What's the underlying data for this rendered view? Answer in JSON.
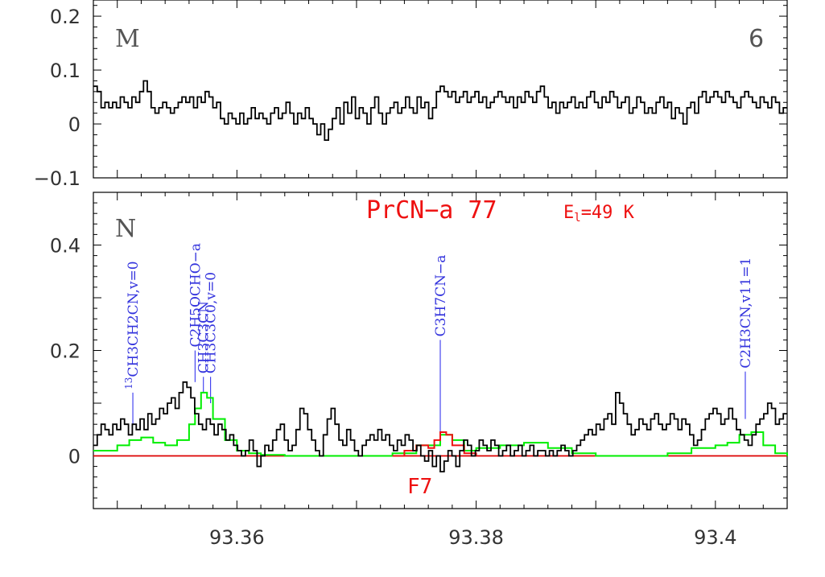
{
  "colors": {
    "observed": "#000000",
    "model": "#00ee00",
    "species": "#ee1111",
    "other_species": "#dd55dd",
    "line_marker": "#2222ee",
    "baseline": "#dd0000"
  },
  "chart_data": [
    {
      "panel": "M",
      "type": "line",
      "panel_label": "M",
      "panel_number": "6",
      "xlim": [
        93.348,
        93.406
      ],
      "ylim": [
        -0.1,
        0.23
      ],
      "y_ticks": [
        {
          "v": 0.2,
          "label": "0.2"
        },
        {
          "v": 0.1,
          "label": "0.1"
        },
        {
          "v": 0,
          "label": "0"
        },
        {
          "v": -0.1,
          "label": "−0.1"
        }
      ],
      "series": [
        {
          "kind": "observed",
          "y": [
            0.07,
            0.06,
            0.03,
            0.04,
            0.03,
            0.04,
            0.03,
            0.05,
            0.04,
            0.03,
            0.05,
            0.04,
            0.06,
            0.08,
            0.06,
            0.03,
            0.02,
            0.03,
            0.04,
            0.03,
            0.02,
            0.03,
            0.04,
            0.05,
            0.04,
            0.05,
            0.03,
            0.05,
            0.04,
            0.06,
            0.05,
            0.03,
            0.04,
            0.01,
            0.0,
            0.02,
            0.01,
            0.0,
            0.02,
            0.0,
            0.01,
            0.03,
            0.01,
            0.02,
            0.01,
            0.0,
            0.02,
            0.03,
            0.01,
            0.02,
            0.04,
            0.02,
            0.0,
            0.02,
            0.01,
            0.03,
            0.01,
            0.0,
            -0.02,
            0.0,
            -0.03,
            -0.01,
            0.01,
            0.03,
            0.0,
            0.04,
            0.02,
            0.05,
            0.01,
            0.03,
            0.02,
            0.0,
            0.03,
            0.05,
            0.02,
            0.0,
            0.02,
            0.03,
            0.04,
            0.02,
            0.03,
            0.05,
            0.03,
            0.02,
            0.05,
            0.03,
            0.04,
            0.01,
            0.03,
            0.06,
            0.07,
            0.06,
            0.05,
            0.06,
            0.04,
            0.05,
            0.06,
            0.04,
            0.05,
            0.06,
            0.04,
            0.05,
            0.03,
            0.04,
            0.05,
            0.06,
            0.05,
            0.04,
            0.05,
            0.03,
            0.05,
            0.04,
            0.06,
            0.05,
            0.04,
            0.06,
            0.07,
            0.05,
            0.03,
            0.04,
            0.02,
            0.04,
            0.03,
            0.04,
            0.05,
            0.03,
            0.04,
            0.03,
            0.05,
            0.06,
            0.04,
            0.03,
            0.05,
            0.04,
            0.06,
            0.05,
            0.03,
            0.04,
            0.05,
            0.02,
            0.03,
            0.05,
            0.04,
            0.02,
            0.03,
            0.02,
            0.04,
            0.05,
            0.03,
            0.04,
            0.01,
            0.03,
            0.02,
            0.0,
            0.03,
            0.04,
            0.02,
            0.05,
            0.06,
            0.04,
            0.05,
            0.06,
            0.05,
            0.04,
            0.06,
            0.05,
            0.04,
            0.03,
            0.05,
            0.06,
            0.05,
            0.04,
            0.03,
            0.05,
            0.04,
            0.03,
            0.05,
            0.04,
            0.02,
            0.03
          ]
        }
      ]
    },
    {
      "panel": "N",
      "type": "line",
      "panel_label": "N",
      "species_title": "PrCN−a 77",
      "energy_label": "E",
      "energy_sub": "l",
      "energy_value": "=49 K",
      "transition_label": "F7",
      "xlim": [
        93.348,
        93.406
      ],
      "ylim": [
        -0.1,
        0.5
      ],
      "x_ticks": [
        {
          "v": 93.36,
          "label": "93.36"
        },
        {
          "v": 93.38,
          "label": "93.38"
        },
        {
          "v": 93.4,
          "label": "93.4"
        }
      ],
      "y_ticks": [
        {
          "v": 0.4,
          "label": "0.4"
        },
        {
          "v": 0.2,
          "label": "0.2"
        },
        {
          "v": 0,
          "label": "0"
        }
      ],
      "series": [
        {
          "kind": "observed",
          "y": [
            0.02,
            0.04,
            0.06,
            0.05,
            0.04,
            0.06,
            0.05,
            0.07,
            0.06,
            0.04,
            0.06,
            0.05,
            0.07,
            0.05,
            0.08,
            0.06,
            0.07,
            0.09,
            0.08,
            0.1,
            0.11,
            0.09,
            0.12,
            0.14,
            0.13,
            0.11,
            0.08,
            0.06,
            0.05,
            0.07,
            0.06,
            0.04,
            0.06,
            0.05,
            0.03,
            0.04,
            0.02,
            0.01,
            0.0,
            0.01,
            0.03,
            0.01,
            -0.02,
            0.0,
            0.02,
            0.01,
            0.03,
            0.05,
            0.06,
            0.03,
            0.01,
            0.02,
            0.05,
            0.09,
            0.08,
            0.05,
            0.03,
            0.01,
            0.0,
            0.04,
            0.07,
            0.09,
            0.06,
            0.03,
            0.02,
            0.05,
            0.03,
            0.01,
            0.0,
            0.02,
            0.03,
            0.04,
            0.03,
            0.05,
            0.03,
            0.04,
            0.02,
            0.01,
            0.03,
            0.02,
            0.04,
            0.03,
            0.01,
            0.02,
            0.0,
            -0.01,
            0.01,
            -0.02,
            0.0,
            -0.03,
            -0.01,
            0.01,
            0.0,
            -0.02,
            0.01,
            0.03,
            0.02,
            0.0,
            0.01,
            0.03,
            0.02,
            0.01,
            0.03,
            0.02,
            0.0,
            0.01,
            0.02,
            0.0,
            0.01,
            0.02,
            0.0,
            0.01,
            0.02,
            0.0,
            0.01,
            0.01,
            0.0,
            0.01,
            0.0,
            0.01,
            0.02,
            0.01,
            0.0,
            0.01,
            0.02,
            0.03,
            0.04,
            0.05,
            0.04,
            0.06,
            0.05,
            0.07,
            0.08,
            0.06,
            0.12,
            0.1,
            0.08,
            0.06,
            0.04,
            0.05,
            0.07,
            0.06,
            0.05,
            0.07,
            0.08,
            0.06,
            0.05,
            0.06,
            0.08,
            0.07,
            0.05,
            0.07,
            0.06,
            0.04,
            0.02,
            0.03,
            0.05,
            0.07,
            0.08,
            0.09,
            0.08,
            0.06,
            0.07,
            0.09,
            0.07,
            0.05,
            0.04,
            0.03,
            0.02,
            0.04,
            0.06,
            0.07,
            0.08,
            0.1,
            0.09,
            0.06,
            0.07,
            0.08
          ]
        },
        {
          "kind": "model",
          "x": [
            93.348,
            93.35,
            93.351,
            93.352,
            93.353,
            93.354,
            93.355,
            93.356,
            93.3565,
            93.357,
            93.3575,
            93.358,
            93.359,
            93.36,
            93.361,
            93.362,
            93.364,
            93.37,
            93.373,
            93.375,
            93.376,
            93.377,
            93.378,
            93.379,
            93.38,
            93.382,
            93.384,
            93.386,
            93.388,
            93.39,
            93.394,
            93.396,
            93.398,
            93.4,
            93.401,
            93.402,
            93.403,
            93.404,
            93.405,
            93.406
          ],
          "y": [
            0.01,
            0.02,
            0.03,
            0.035,
            0.025,
            0.02,
            0.03,
            0.06,
            0.09,
            0.12,
            0.11,
            0.07,
            0.03,
            0.01,
            0.005,
            0.002,
            0.0,
            0.0,
            0.005,
            0.02,
            0.02,
            0.04,
            0.03,
            0.01,
            0.015,
            0.02,
            0.025,
            0.015,
            0.005,
            0.0,
            0.0,
            0.005,
            0.015,
            0.02,
            0.025,
            0.04,
            0.045,
            0.02,
            0.005,
            0.0
          ]
        },
        {
          "kind": "species",
          "x": [
            93.373,
            93.374,
            93.375,
            93.376,
            93.3765,
            93.377,
            93.3775,
            93.378,
            93.379,
            93.38
          ],
          "y": [
            0.0,
            0.01,
            0.02,
            0.015,
            0.03,
            0.045,
            0.04,
            0.02,
            0.005,
            0.0
          ]
        }
      ],
      "line_markers": [
        {
          "label_pre": "13",
          "label": "CH3CH2CN,v=0",
          "x": 93.3513,
          "top": 0.12,
          "bottom": 0.06
        },
        {
          "label": "C2H5OCHO−a",
          "x": 93.3565,
          "top": 0.2,
          "bottom": 0.14
        },
        {
          "label": "CH3C3CN",
          "x": 93.3572,
          "top": 0.15,
          "bottom": 0.12
        },
        {
          "label": "CH3C3C0,v=0",
          "x": 93.3578,
          "top": 0.15,
          "bottom": 0.1
        },
        {
          "label": "C3H7CN−a",
          "x": 93.377,
          "top": 0.22,
          "bottom": 0.045
        },
        {
          "label": "C2H3CN,v11=1",
          "x": 93.4025,
          "top": 0.16,
          "bottom": 0.07
        }
      ]
    }
  ]
}
